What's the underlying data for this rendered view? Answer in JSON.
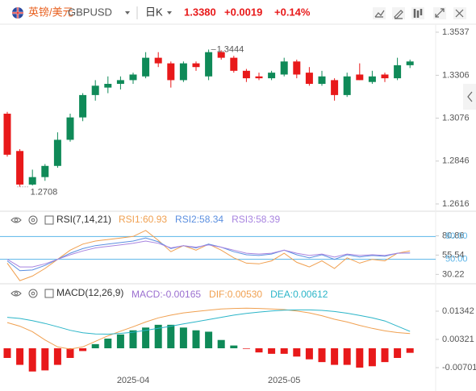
{
  "header": {
    "pair_cn": "英镑/美元",
    "symbol": "GBPUSD",
    "period": "日K",
    "price": "1.3380",
    "change": "+0.0019",
    "change_pct": "+0.14%"
  },
  "chart_data": [
    {
      "type": "candlestick",
      "categories": [
        null,
        null,
        null,
        null,
        null,
        null,
        null,
        null,
        null,
        null,
        "2025-04",
        null,
        null,
        null,
        null,
        null,
        null,
        null,
        null,
        null,
        null,
        null,
        "2025-05",
        null,
        null,
        null,
        null,
        null,
        null,
        null,
        null,
        null,
        null
      ],
      "open": [
        1.31,
        1.29,
        1.272,
        1.276,
        1.282,
        1.296,
        1.308,
        1.32,
        1.324,
        1.326,
        1.328,
        1.33,
        1.34,
        1.337,
        1.328,
        1.337,
        1.33,
        1.343,
        1.34,
        1.333,
        1.33,
        1.329,
        1.331,
        1.338,
        1.332,
        1.326,
        1.328,
        1.32,
        1.331,
        1.327,
        1.331,
        1.329,
        1.336
      ],
      "high": [
        1.311,
        1.291,
        1.28,
        1.283,
        1.3,
        1.31,
        1.321,
        1.328,
        1.33,
        1.33,
        1.332,
        1.343,
        1.343,
        1.338,
        1.338,
        1.338,
        1.3444,
        1.344,
        1.341,
        1.334,
        1.332,
        1.333,
        1.34,
        1.339,
        1.335,
        1.333,
        1.329,
        1.332,
        1.337,
        1.333,
        1.332,
        1.34,
        1.339
      ],
      "low": [
        1.287,
        1.2708,
        1.2715,
        1.274,
        1.281,
        1.295,
        1.306,
        1.317,
        1.321,
        1.323,
        1.326,
        1.329,
        1.335,
        1.324,
        1.327,
        1.333,
        1.328,
        1.339,
        1.332,
        1.327,
        1.328,
        1.328,
        1.33,
        1.329,
        1.325,
        1.325,
        1.317,
        1.319,
        1.328,
        1.326,
        1.327,
        1.328,
        1.3345
      ],
      "close": [
        1.288,
        1.272,
        1.276,
        1.282,
        1.296,
        1.308,
        1.32,
        1.325,
        1.326,
        1.328,
        1.331,
        1.34,
        1.337,
        1.328,
        1.337,
        1.335,
        1.343,
        1.34,
        1.333,
        1.329,
        1.329,
        1.332,
        1.338,
        1.331,
        1.326,
        1.33,
        1.32,
        1.33,
        1.328,
        1.33,
        1.329,
        1.336,
        1.338
      ],
      "up_color": "#0f8a58",
      "down_color": "#e8191a",
      "ylim": [
        1.2577,
        1.358
      ],
      "yticks": [
        1.3537,
        1.3306,
        1.3076,
        1.2846,
        1.2616
      ],
      "high_label": {
        "value": 1.3444,
        "label": "1.3444"
      },
      "low_label": {
        "value": 1.2708,
        "label": "1.2708"
      }
    },
    {
      "type": "line",
      "title": "RSI(7,14,21)",
      "series": [
        {
          "name": "RSI1:60.93",
          "color": "#f0a050",
          "values": [
            45,
            22,
            28,
            38,
            50,
            62,
            70,
            74,
            76,
            78,
            80,
            88,
            75,
            60,
            68,
            62,
            70,
            62,
            52,
            45,
            44,
            48,
            58,
            46,
            40,
            48,
            38,
            52,
            45,
            50,
            48,
            58,
            60.93
          ]
        },
        {
          "name": "RSI2:58.34",
          "color": "#5b8fe0",
          "values": [
            48,
            35,
            36,
            42,
            50,
            58,
            64,
            68,
            70,
            72,
            74,
            78,
            73,
            64,
            68,
            65,
            70,
            66,
            60,
            56,
            55,
            57,
            62,
            56,
            52,
            56,
            50,
            56,
            53,
            55,
            54,
            58,
            58.34
          ]
        },
        {
          "name": "RSI3:58.39",
          "color": "#a884e0",
          "values": [
            50,
            40,
            40,
            44,
            50,
            56,
            61,
            65,
            67,
            69,
            71,
            74,
            71,
            65,
            68,
            66,
            69,
            66,
            62,
            58,
            57,
            58,
            62,
            58,
            55,
            57,
            53,
            57,
            55,
            56,
            55,
            58,
            58.39
          ]
        }
      ],
      "ylim": [
        20,
        92
      ],
      "yticks": [
        80.86,
        55.54,
        30.22
      ],
      "hlines": [
        {
          "value": 80,
          "label": "80.00"
        },
        {
          "value": 50,
          "label": "50.00"
        }
      ],
      "hline_color": "#5ab4e8"
    },
    {
      "type": "macd",
      "title": "MACD(12,26,9)",
      "series": [
        {
          "name": "MACD:-0.00165",
          "color": "#9b6fd0",
          "up_color": "#0f8a58",
          "down_color": "#e8191a",
          "values": [
            -0.0035,
            -0.006,
            -0.0084,
            -0.008,
            -0.006,
            -0.0035,
            -0.001,
            0.0015,
            0.0035,
            0.005,
            0.0065,
            0.0075,
            0.0085,
            0.0085,
            0.0075,
            0.0065,
            0.006,
            0.003,
            0.001,
            -0.0002,
            -0.0015,
            -0.002,
            -0.002,
            -0.003,
            -0.004,
            -0.005,
            -0.006,
            -0.006,
            -0.007,
            -0.0065,
            -0.005,
            -0.0035,
            -0.00165
          ]
        },
        {
          "name": "DIF:0.00530",
          "color": "#f0a050",
          "values": [
            0.0093,
            0.008,
            0.006,
            0.003,
            0.0005,
            -0.0003,
            0.0005,
            0.0025,
            0.0045,
            0.0062,
            0.0078,
            0.0095,
            0.011,
            0.012,
            0.0128,
            0.0133,
            0.0138,
            0.0142,
            0.0144,
            0.0145,
            0.0144,
            0.0142,
            0.014,
            0.0135,
            0.0128,
            0.0118,
            0.0105,
            0.0095,
            0.0083,
            0.0072,
            0.0063,
            0.0057,
            0.0053
          ]
        },
        {
          "name": "DEA:0.00612",
          "color": "#2bb5c8",
          "values": [
            0.0112,
            0.0108,
            0.01,
            0.009,
            0.0078,
            0.0065,
            0.0056,
            0.0052,
            0.0051,
            0.0054,
            0.0058,
            0.0065,
            0.0072,
            0.008,
            0.0088,
            0.0096,
            0.0104,
            0.0112,
            0.012,
            0.0126,
            0.0131,
            0.0135,
            0.0138,
            0.0139,
            0.0139,
            0.0137,
            0.0133,
            0.0127,
            0.0119,
            0.011,
            0.0099,
            0.008,
            0.0061
          ]
        }
      ],
      "ylim": [
        -0.00875,
        0.01663
      ],
      "yticks": [
        0.01342,
        0.00321,
        -0.00701
      ]
    }
  ]
}
